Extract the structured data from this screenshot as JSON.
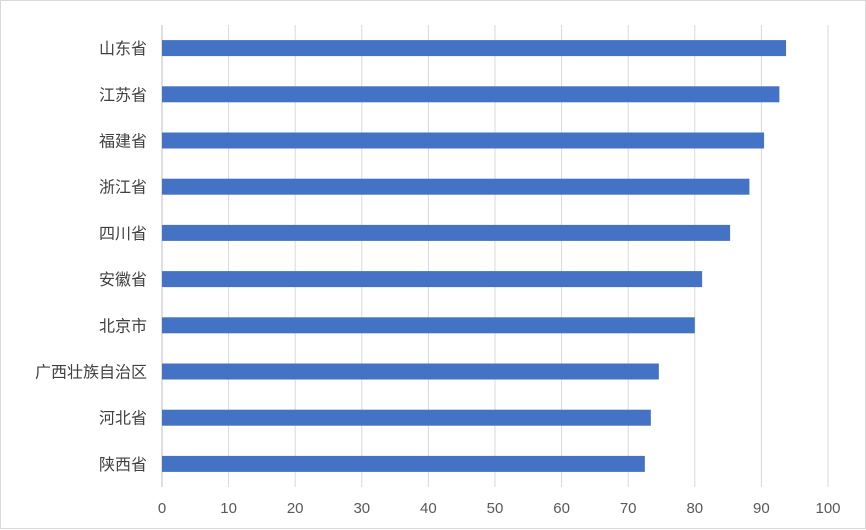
{
  "chart_data": {
    "type": "bar",
    "orientation": "horizontal",
    "title": "",
    "xlabel": "",
    "ylabel": "",
    "categories": [
      "山东省",
      "江苏省",
      "福建省",
      "浙江省",
      "四川省",
      "安徽省",
      "北京市",
      "广西壮族自治区",
      "河北省",
      "陕西省"
    ],
    "values": [
      93.7,
      92.7,
      90.4,
      88.2,
      85.3,
      81.1,
      80.0,
      74.6,
      73.4,
      72.5
    ],
    "xlim": [
      0,
      100
    ],
    "xticks": [
      0,
      10,
      20,
      30,
      40,
      50,
      60,
      70,
      80,
      90,
      100
    ],
    "grid": "vertical",
    "legend": "none",
    "colors": {
      "bar": "#4472c4",
      "grid": "#d9d9d9",
      "axis": "#bfbfbf"
    }
  }
}
